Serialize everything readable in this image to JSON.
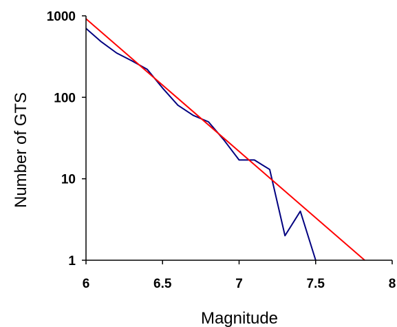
{
  "chart_data": {
    "type": "line",
    "xlabel": "Magnitude",
    "ylabel": "Number of GTS",
    "xlim": [
      6,
      8
    ],
    "ylim": [
      1,
      1000
    ],
    "y_scale": "log",
    "grid": false,
    "legend": "none",
    "x_ticks": [
      {
        "value": 6,
        "label": "6"
      },
      {
        "value": 6.5,
        "label": "6.5"
      },
      {
        "value": 7,
        "label": "7"
      },
      {
        "value": 7.5,
        "label": "7.5"
      },
      {
        "value": 8,
        "label": "8"
      }
    ],
    "y_ticks": [
      {
        "value": 1,
        "label": "1"
      },
      {
        "value": 10,
        "label": "10"
      },
      {
        "value": 100,
        "label": "100"
      },
      {
        "value": 1000,
        "label": "1000"
      }
    ],
    "series": [
      {
        "color": "#000080",
        "x": [
          6.0,
          6.1,
          6.2,
          6.3,
          6.4,
          6.5,
          6.6,
          6.7,
          6.8,
          6.9,
          7.0,
          7.1,
          7.2,
          7.3,
          7.4,
          7.5
        ],
        "values": [
          700,
          480,
          350,
          280,
          220,
          130,
          80,
          60,
          50,
          30,
          17,
          17,
          13,
          2,
          4,
          1
        ]
      },
      {
        "color": "#ff0000",
        "x": [
          6.0,
          7.82
        ],
        "values": [
          920,
          1
        ]
      }
    ]
  }
}
